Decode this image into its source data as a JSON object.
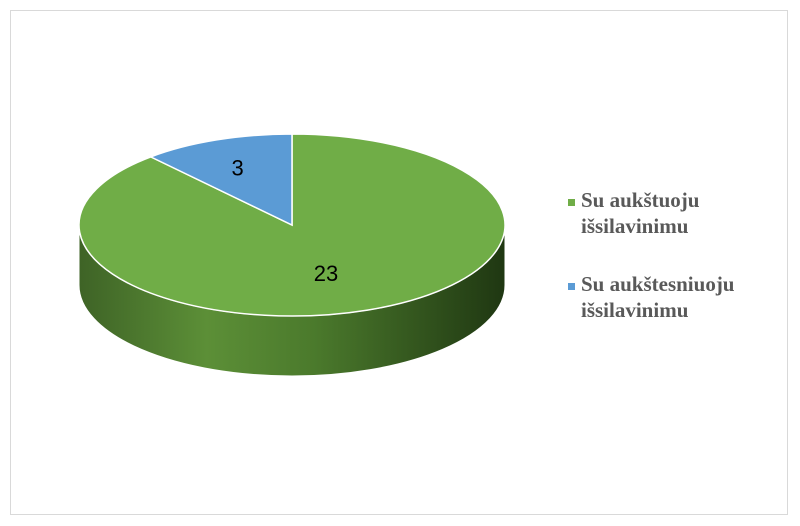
{
  "chart_data": {
    "type": "pie",
    "style": "3d",
    "title": "",
    "slices": [
      {
        "label": "Su aukštuoju išsilavinimu",
        "value": 23,
        "color": "#70ad47"
      },
      {
        "label": "Su aukštesniuoju išsilavinimu",
        "value": 3,
        "color": "#5b9bd5"
      }
    ],
    "legend": {
      "placement": "right",
      "entries": [
        {
          "lines": [
            "Su aukštuoju",
            "išsilavinimu"
          ],
          "color": "#70ad47"
        },
        {
          "lines": [
            "Su aukštesniuoju",
            "išsilavinimu"
          ],
          "color": "#5b9bd5"
        }
      ]
    }
  }
}
